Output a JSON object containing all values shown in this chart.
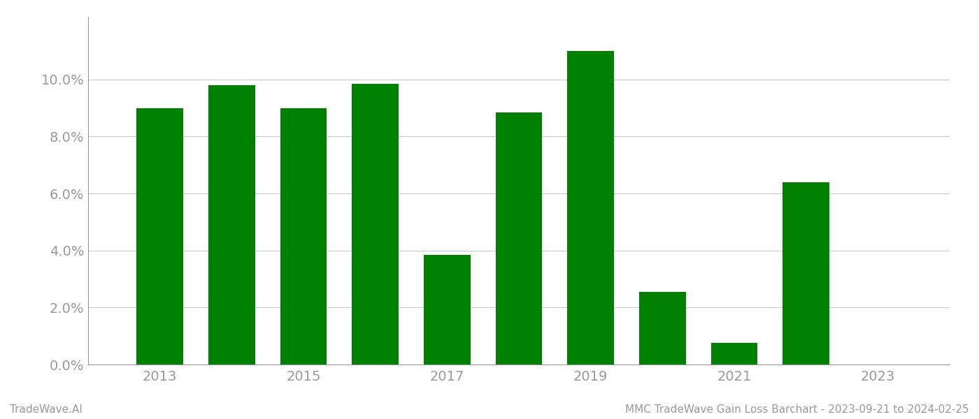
{
  "years": [
    2013,
    2014,
    2015,
    2016,
    2017,
    2018,
    2019,
    2020,
    2021,
    2022,
    2023
  ],
  "values": [
    0.09,
    0.098,
    0.09,
    0.0985,
    0.0385,
    0.0885,
    0.11,
    0.0255,
    0.0075,
    0.064,
    0.0
  ],
  "bar_color": "#008000",
  "background_color": "#ffffff",
  "grid_color": "#c8c8c8",
  "axis_label_color": "#999999",
  "ylim": [
    0,
    0.122
  ],
  "yticks": [
    0.0,
    0.02,
    0.04,
    0.06,
    0.08,
    0.1
  ],
  "footer_left": "TradeWave.AI",
  "footer_right": "MMC TradeWave Gain Loss Barchart - 2023-09-21 to 2024-02-25",
  "bar_width": 0.65,
  "font_family": "DejaVu Sans",
  "tick_fontsize": 14,
  "footer_fontsize": 11
}
